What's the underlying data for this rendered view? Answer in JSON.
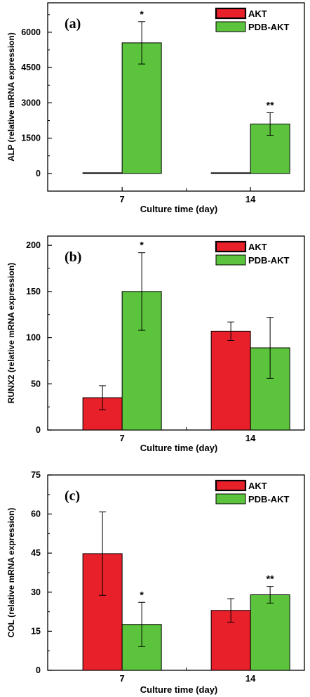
{
  "chart_data": [
    {
      "type": "bar",
      "panel_label": "(a)",
      "ylabel": "ALP (relative mRNA expression)",
      "xlabel": "Culture time (day)",
      "categories": [
        "7",
        "14"
      ],
      "ylim": [
        -750,
        7250
      ],
      "yticks": [
        "0",
        "1500",
        "3000",
        "4500",
        "6000"
      ],
      "ytick_values": [
        0,
        1500,
        3000,
        4500,
        6000
      ],
      "series": [
        {
          "name": "AKT",
          "color": "#e8202a",
          "values": [
            30,
            25
          ],
          "errors": [
            0,
            0
          ],
          "annotations": [
            "",
            ""
          ]
        },
        {
          "name": "PDB-AKT",
          "color": "#5cc43c",
          "values": [
            5550,
            2100
          ],
          "errors": [
            900,
            480
          ],
          "annotations": [
            "*",
            "**"
          ]
        }
      ],
      "legend_position": "top-right",
      "grid": false
    },
    {
      "type": "bar",
      "panel_label": "(b)",
      "ylabel": "RUNX2 (relative mRNA expression)",
      "xlabel": "Culture time (day)",
      "categories": [
        "7",
        "14"
      ],
      "ylim": [
        0,
        210
      ],
      "yticks": [
        "0",
        "50",
        "100",
        "150",
        "200"
      ],
      "ytick_values": [
        0,
        50,
        100,
        150,
        200
      ],
      "series": [
        {
          "name": "AKT",
          "color": "#e8202a",
          "values": [
            35,
            107
          ],
          "errors": [
            13,
            10
          ],
          "annotations": [
            "",
            ""
          ]
        },
        {
          "name": "PDB-AKT",
          "color": "#5cc43c",
          "values": [
            150,
            89
          ],
          "errors": [
            42,
            33
          ],
          "annotations": [
            "*",
            ""
          ]
        }
      ],
      "legend_position": "top-right",
      "grid": false
    },
    {
      "type": "bar",
      "panel_label": "(c)",
      "ylabel": "COL (relative mRNA expression)",
      "xlabel": "Culture time (day)",
      "categories": [
        "7",
        "14"
      ],
      "ylim": [
        0,
        75
      ],
      "yticks": [
        "0",
        "15",
        "30",
        "45",
        "60",
        "75"
      ],
      "ytick_values": [
        0,
        15,
        30,
        45,
        60,
        75
      ],
      "series": [
        {
          "name": "AKT",
          "color": "#e8202a",
          "values": [
            44.8,
            23
          ],
          "errors": [
            16,
            4.5
          ],
          "annotations": [
            "",
            ""
          ]
        },
        {
          "name": "PDB-AKT",
          "color": "#5cc43c",
          "values": [
            17.6,
            29
          ],
          "errors": [
            8.5,
            3.2
          ],
          "annotations": [
            "*",
            "**"
          ]
        }
      ],
      "legend_position": "top-right",
      "grid": false
    }
  ]
}
